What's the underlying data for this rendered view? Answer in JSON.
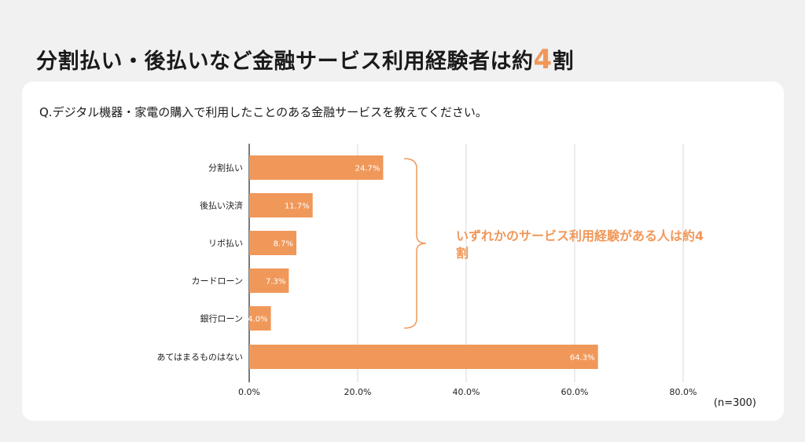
{
  "page": {
    "title_prefix": "分割払い・後払いなど金融サービス利用経験者は約",
    "title_accent": "4",
    "title_suffix": "割",
    "question": "Q.デジタル機器・家電の購入で利用したことのある金融サービスを教えてください。",
    "sample_note": "(n=300)",
    "annotation": "いずれかのサービス利用経験がある人は約4割"
  },
  "colors": {
    "bar": "#f0985a",
    "accent": "#f0985a",
    "grid": "#d9d9d9",
    "axis": "#222222"
  },
  "chart_data": {
    "type": "bar",
    "orientation": "horizontal",
    "categories": [
      "分割払い",
      "後払い決済",
      "リボ払い",
      "カードローン",
      "銀行ローン",
      "あてはまるものはない"
    ],
    "values": [
      24.7,
      11.7,
      8.7,
      7.3,
      4.0,
      64.3
    ],
    "value_labels": [
      "24.7%",
      "11.7%",
      "8.7%",
      "7.3%",
      "4.0%",
      "64.3%"
    ],
    "xlim": [
      0,
      80
    ],
    "xticks": [
      "0.0%",
      "20.0%",
      "40.0%",
      "60.0%",
      "80.0%"
    ],
    "grid": true,
    "annotation_bracket_categories": [
      "分割払い",
      "後払い決済",
      "リボ払い",
      "カードローン",
      "銀行ローン"
    ]
  }
}
